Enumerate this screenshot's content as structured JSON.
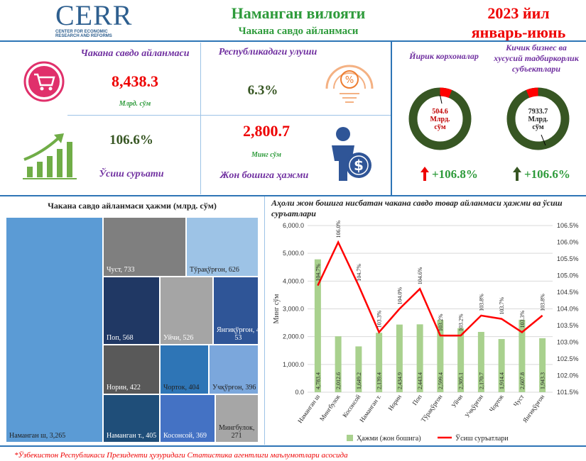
{
  "header": {
    "logo_title": "CERR",
    "logo_sub1": "CENTER FOR ECONOMIC",
    "logo_sub2": "RESEARCH AND REFORMS",
    "region": "Наманган вилояти",
    "subtitle": "Чакана савдо айланмаси",
    "year": "2023 йил",
    "period": "январь-июнь"
  },
  "kpis": {
    "turnover_label": "Чакана савдо айланмаси",
    "turnover_value": "8,438.3",
    "turnover_unit": "Млрд. сўм",
    "share_label": "Республикадаги улуши",
    "share_value": "6.3%",
    "growth_value": "106.6%",
    "growth_label": "Ўсиш суръати",
    "percap_value": "2,800.7",
    "percap_unit": "Минг сўм",
    "percap_label": "Жон бошига ҳажми"
  },
  "donuts": {
    "large_label": "Йирик корхоналар",
    "large_value": "504.6",
    "large_unit1": "Млрд.",
    "large_unit2": "сўм",
    "large_growth": "+106.8%",
    "small_label1": "Кичик бизнес ва",
    "small_label2": "хусусий тадбиркорлик",
    "small_label3": "субъектлари",
    "small_value": "7933.7",
    "small_unit1": "Млрд.",
    "small_unit2": "сўм",
    "small_growth": "+106.6%",
    "colors": {
      "ring": "#375623",
      "accent": "#ff0000"
    }
  },
  "treemap": {
    "title": "Чакана савдо айланмаси ҳажми (млрд. сўм)",
    "items": [
      {
        "name": "Наманган ш",
        "label": "Наманган ш, 3,265",
        "color": "#5b9bd5",
        "text": "#222"
      },
      {
        "name": "Чуст",
        "label": "Чуст, 733",
        "color": "#7f7f7f",
        "text": "#fff"
      },
      {
        "name": "Тўрақўрғон",
        "label": "Тўрақўрғон, 626",
        "color": "#9dc3e6",
        "text": "#222"
      },
      {
        "name": "Поп",
        "label": "Поп, 568",
        "color": "#203864",
        "text": "#fff"
      },
      {
        "name": "Уйчи",
        "label": "Уйчи, 526",
        "color": "#a5a5a5",
        "text": "#fff"
      },
      {
        "name": "Янгиқўрғон",
        "label": "Янгиқўрғон, 4",
        "label2": "53",
        "color": "#2f5597",
        "text": "#fff"
      },
      {
        "name": "Норин",
        "label": "Норин, 422",
        "color": "#595959",
        "text": "#fff"
      },
      {
        "name": "Чорток",
        "label": "Чорток, 404",
        "color": "#2e75b6",
        "text": "#222"
      },
      {
        "name": "Учқўрғон",
        "label": "Учқўрғон, 396",
        "color": "#7ba7dc",
        "text": "#222"
      },
      {
        "name": "Наманган т.",
        "label": "Наманган т., 405",
        "color": "#1f4e79",
        "text": "#fff"
      },
      {
        "name": "Косонсой",
        "label": "Косонсой, 369",
        "color": "#4472c4",
        "text": "#fff"
      },
      {
        "name": "Мингбулок",
        "label": "Мингбулок,",
        "label2": "271",
        "color": "#a6a6a6",
        "text": "#222"
      }
    ]
  },
  "chart_data": {
    "type": "bar",
    "title": "Аҳоли жон бошига нисбатан чакана савдо товар айланмаси ҳажми ва ўсиш суръатлари",
    "ylabel": "Минг сўм",
    "categories": [
      "Наманган ш",
      "Мингбулок",
      "Косонсой",
      "Наманган т.",
      "Норин",
      "Поп",
      "Тўрақўрғон",
      "Уйчи",
      "Учқўрғон",
      "Чорток",
      "Чуст",
      "Янгиқўрғон"
    ],
    "series": [
      {
        "name": "Ҳажми (жон бошига)",
        "type": "bar",
        "values": [
          4783.4,
          2012.6,
          1649.2,
          2139.4,
          2434.9,
          2443.4,
          2599.4,
          2305.1,
          2170.7,
          1914.4,
          2607.8,
          1943.3
        ],
        "color": "#a9d18e"
      },
      {
        "name": "Ўсиш суръатлари",
        "type": "line",
        "axis": "right",
        "values": [
          104.7,
          106.0,
          104.7,
          103.3,
          104.0,
          104.6,
          103.2,
          103.2,
          103.8,
          103.7,
          103.3,
          103.8
        ],
        "labels": [
          "104.7%",
          "106.0%",
          "104.7%",
          "103.3%",
          "104.0%",
          "104.6%",
          "103.2%",
          "103.2%",
          "103.8%",
          "103.7%",
          "103.3%",
          "103.8%"
        ],
        "color": "#ff0000"
      }
    ],
    "bar_labels": [
      "4,783.4",
      "2,012.6",
      "1,649.2",
      "2,139.4",
      "2,434.9",
      "2,443.4",
      "2,599.4",
      "2,305.1",
      "2,170.7",
      "1,914.4",
      "2,607.8",
      "1,943.3"
    ],
    "ylim": [
      0,
      6000
    ],
    "yticks": [
      "0.0",
      "1,000.0",
      "2,000.0",
      "3,000.0",
      "4,000.0",
      "5,000.0",
      "6,000.0"
    ],
    "y2lim": [
      101.5,
      106.5
    ],
    "y2ticks": [
      "101.5%",
      "102.0%",
      "102.5%",
      "103.0%",
      "103.5%",
      "104.0%",
      "104.5%",
      "105.0%",
      "105.5%",
      "106.0%",
      "106.5%"
    ],
    "grid": true,
    "legend": "bottom"
  },
  "footnote": "*Ўзбекистон Республикаси Президенти ҳузуридаги Статистика агентлиги маълумотлари асосида"
}
